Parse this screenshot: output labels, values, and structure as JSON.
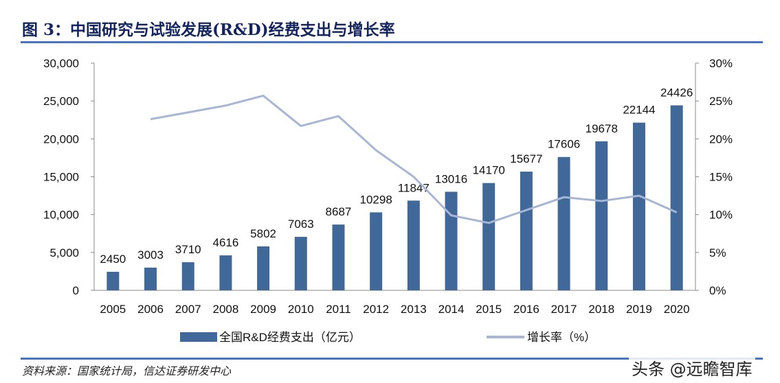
{
  "title": "图 3：中国研究与试验发展(R&D)经费支出与增长率",
  "source": "资料来源：国家统计局，信达证券研发中心",
  "watermark": "头条 @远瞻智库",
  "colors": {
    "bar": "#406898",
    "line": "#a6b6d4",
    "title": "#13245e",
    "rule": "#4472c4"
  },
  "chart_data": {
    "type": "bar+line",
    "categories": [
      "2005",
      "2006",
      "2007",
      "2008",
      "2009",
      "2010",
      "2011",
      "2012",
      "2013",
      "2014",
      "2015",
      "2016",
      "2017",
      "2018",
      "2019",
      "2020"
    ],
    "series": [
      {
        "name": "全国R&D经费支出（亿元）",
        "type": "bar",
        "axis": "left",
        "values": [
          2450,
          3003,
          3710,
          4616,
          5802,
          7063,
          8687,
          10298,
          11847,
          13016,
          14170,
          15677,
          17606,
          19678,
          22144,
          24426
        ]
      },
      {
        "name": "增长率（%）",
        "type": "line",
        "axis": "right",
        "values": [
          null,
          22.6,
          23.5,
          24.4,
          25.7,
          21.7,
          23.0,
          18.5,
          15.0,
          9.9,
          8.9,
          10.6,
          12.3,
          11.8,
          12.5,
          10.3
        ]
      }
    ],
    "y_left": {
      "range": [
        0,
        30000
      ],
      "ticks": [
        "0",
        "5,000",
        "10,000",
        "15,000",
        "20,000",
        "25,000",
        "30,000"
      ]
    },
    "y_right": {
      "range": [
        0,
        30
      ],
      "ticks": [
        "0%",
        "5%",
        "10%",
        "15%",
        "20%",
        "25%",
        "30%"
      ]
    },
    "legend": {
      "placement": "bottom",
      "items": [
        "全国R&D经费支出（亿元）",
        "增长率（%）"
      ]
    },
    "grid": false
  }
}
